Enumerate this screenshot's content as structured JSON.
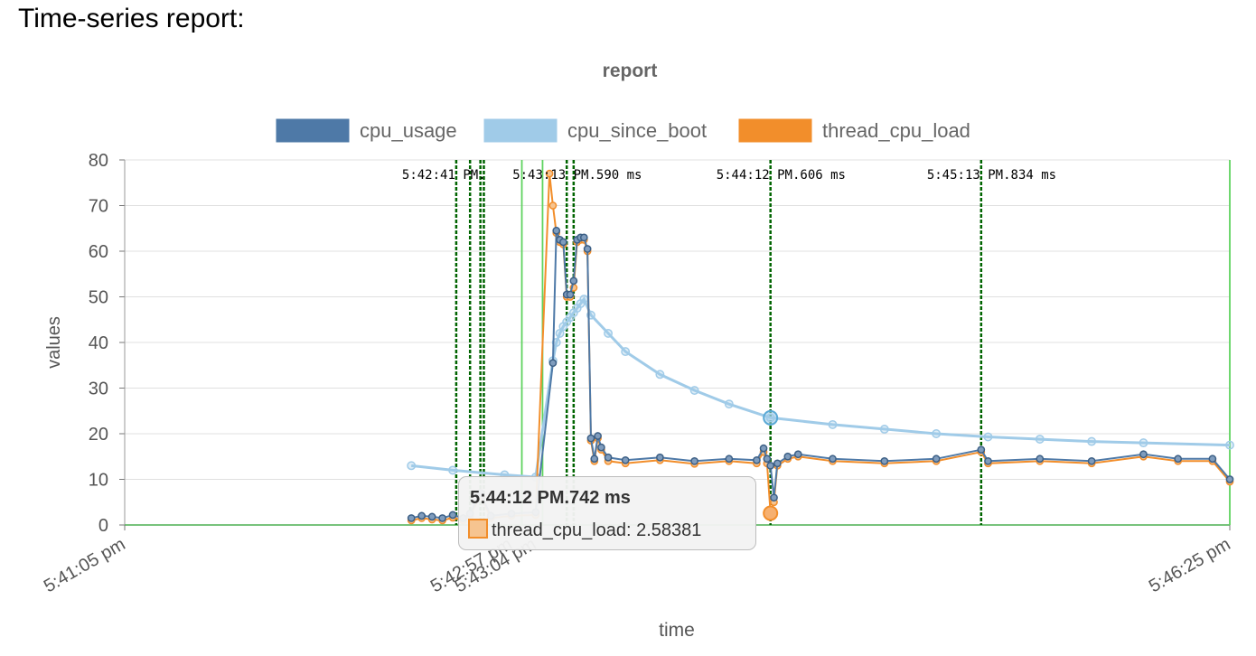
{
  "page": {
    "heading": "Time-series report:"
  },
  "colors": {
    "cpu_usage": "#4e79a7",
    "cpu_since_boot": "#a0cbe8",
    "thread_cpu_load": "#f28e2b",
    "marker_solid": "#5fd35f",
    "marker_dashed": "#006400",
    "zero_line": "#4caf50"
  },
  "chart_data": {
    "type": "line",
    "title": "report",
    "xlabel": "time",
    "ylabel": "values",
    "ylim": [
      0,
      80
    ],
    "yticks": [
      0,
      10,
      20,
      30,
      40,
      50,
      60,
      70,
      80
    ],
    "xlim": [
      "5:41:05 pm",
      "5:46:25 pm"
    ],
    "xticks": [
      {
        "t": "5:41:05 pm",
        "label": "5:41:05 pm"
      },
      {
        "t": "5:42:57 pm",
        "label": "5:42:57 pm"
      },
      {
        "t": "5:43:04 pm",
        "label": "5:43:04 pm"
      },
      {
        "t": "5:46:25 pm",
        "label": "5:46:25 pm"
      }
    ],
    "legend_position": "top",
    "grid": true,
    "series": [
      {
        "name": "cpu_usage",
        "points": [
          [
            "5:42:28 pm",
            1.5
          ],
          [
            "5:42:31 pm",
            2.0
          ],
          [
            "5:42:34 pm",
            1.8
          ],
          [
            "5:42:37 pm",
            1.5
          ],
          [
            "5:42:40 pm",
            2.2
          ],
          [
            "5:42:43 pm",
            1.5
          ],
          [
            "5:42:45 pm",
            2.5
          ],
          [
            "5:42:48 pm",
            7.0
          ],
          [
            "5:42:51 pm",
            2.0
          ],
          [
            "5:42:57 pm",
            2.5
          ],
          [
            "5:43:04 pm",
            2.8
          ],
          [
            "5:43:09 pm",
            35.5
          ],
          [
            "5:43:10 pm",
            64.5
          ],
          [
            "5:43:11 pm",
            62.5
          ],
          [
            "5:43:12 pm",
            62.0
          ],
          [
            "5:43:13 pm",
            50.5
          ],
          [
            "5:43:14 pm",
            50.5
          ],
          [
            "5:43:15 pm",
            53.5
          ],
          [
            "5:43:16 pm",
            62.5
          ],
          [
            "5:43:17 pm",
            63.0
          ],
          [
            "5:43:18 pm",
            63.0
          ],
          [
            "5:43:19 pm",
            60.5
          ],
          [
            "5:43:20 pm",
            19.0
          ],
          [
            "5:43:21 pm",
            14.5
          ],
          [
            "5:43:22 pm",
            19.5
          ],
          [
            "5:43:23 pm",
            17.0
          ],
          [
            "5:43:25 pm",
            14.8
          ],
          [
            "5:43:30 pm",
            14.2
          ],
          [
            "5:43:40 pm",
            14.8
          ],
          [
            "5:43:50 pm",
            14.0
          ],
          [
            "5:44:00 pm",
            14.5
          ],
          [
            "5:44:08 pm",
            14.2
          ],
          [
            "5:44:10 pm",
            16.8
          ],
          [
            "5:44:11 pm",
            14.5
          ],
          [
            "5:44:12 pm",
            13.0
          ],
          [
            "5:44:13 pm",
            6.0
          ],
          [
            "5:44:14 pm",
            13.5
          ],
          [
            "5:44:17 pm",
            15.0
          ],
          [
            "5:44:20 pm",
            15.5
          ],
          [
            "5:44:30 pm",
            14.5
          ],
          [
            "5:44:45 pm",
            14.0
          ],
          [
            "5:45:00 pm",
            14.5
          ],
          [
            "5:45:13 pm",
            16.5
          ],
          [
            "5:45:15 pm",
            14.0
          ],
          [
            "5:45:30 pm",
            14.5
          ],
          [
            "5:45:45 pm",
            14.0
          ],
          [
            "5:46:00 pm",
            15.5
          ],
          [
            "5:46:10 pm",
            14.5
          ],
          [
            "5:46:20 pm",
            14.5
          ],
          [
            "5:46:25 pm",
            10.0
          ]
        ]
      },
      {
        "name": "cpu_since_boot",
        "points": [
          [
            "5:42:28 pm",
            13.0
          ],
          [
            "5:42:40 pm",
            12.0
          ],
          [
            "5:42:55 pm",
            11.0
          ],
          [
            "5:43:04 pm",
            10.5
          ],
          [
            "5:43:09 pm",
            36.0
          ],
          [
            "5:43:10 pm",
            40.0
          ],
          [
            "5:43:11 pm",
            42.0
          ],
          [
            "5:43:12 pm",
            43.5
          ],
          [
            "5:43:13 pm",
            44.5
          ],
          [
            "5:43:14 pm",
            45.5
          ],
          [
            "5:43:15 pm",
            46.5
          ],
          [
            "5:43:16 pm",
            47.5
          ],
          [
            "5:43:17 pm",
            48.5
          ],
          [
            "5:43:18 pm",
            49.5
          ],
          [
            "5:43:20 pm",
            46.0
          ],
          [
            "5:43:25 pm",
            42.0
          ],
          [
            "5:43:30 pm",
            38.0
          ],
          [
            "5:43:40 pm",
            33.0
          ],
          [
            "5:43:50 pm",
            29.5
          ],
          [
            "5:44:00 pm",
            26.5
          ],
          [
            "5:44:12 pm",
            23.5
          ],
          [
            "5:44:30 pm",
            22.0
          ],
          [
            "5:44:45 pm",
            21.0
          ],
          [
            "5:45:00 pm",
            20.0
          ],
          [
            "5:45:15 pm",
            19.3
          ],
          [
            "5:45:30 pm",
            18.8
          ],
          [
            "5:45:45 pm",
            18.3
          ],
          [
            "5:46:00 pm",
            18.0
          ],
          [
            "5:46:25 pm",
            17.5
          ]
        ]
      },
      {
        "name": "thread_cpu_load",
        "points": [
          [
            "5:42:28 pm",
            1.0
          ],
          [
            "5:42:31 pm",
            1.5
          ],
          [
            "5:42:34 pm",
            1.2
          ],
          [
            "5:42:37 pm",
            1.0
          ],
          [
            "5:42:40 pm",
            1.6
          ],
          [
            "5:42:43 pm",
            1.0
          ],
          [
            "5:42:45 pm",
            2.0
          ],
          [
            "5:42:48 pm",
            6.5
          ],
          [
            "5:42:51 pm",
            1.5
          ],
          [
            "5:42:57 pm",
            2.0
          ],
          [
            "5:43:04 pm",
            2.2
          ],
          [
            "5:43:08 pm",
            77.0
          ],
          [
            "5:43:09 pm",
            70.0
          ],
          [
            "5:43:10 pm",
            64.0
          ],
          [
            "5:43:11 pm",
            62.0
          ],
          [
            "5:43:12 pm",
            61.5
          ],
          [
            "5:43:13 pm",
            50.0
          ],
          [
            "5:43:14 pm",
            50.0
          ],
          [
            "5:43:15 pm",
            52.0
          ],
          [
            "5:43:16 pm",
            62.0
          ],
          [
            "5:43:17 pm",
            62.5
          ],
          [
            "5:43:18 pm",
            62.5
          ],
          [
            "5:43:19 pm",
            60.0
          ],
          [
            "5:43:20 pm",
            18.5
          ],
          [
            "5:43:21 pm",
            14.0
          ],
          [
            "5:43:22 pm",
            19.0
          ],
          [
            "5:43:23 pm",
            16.5
          ],
          [
            "5:43:25 pm",
            14.0
          ],
          [
            "5:43:30 pm",
            13.5
          ],
          [
            "5:43:40 pm",
            14.2
          ],
          [
            "5:43:50 pm",
            13.4
          ],
          [
            "5:44:00 pm",
            14.0
          ],
          [
            "5:44:08 pm",
            13.5
          ],
          [
            "5:44:10 pm",
            16.0
          ],
          [
            "5:44:11 pm",
            13.5
          ],
          [
            "5:44:12 pm",
            2.58381
          ],
          [
            "5:44:13 pm",
            5.0
          ],
          [
            "5:44:14 pm",
            13.0
          ],
          [
            "5:44:17 pm",
            14.5
          ],
          [
            "5:44:20 pm",
            15.0
          ],
          [
            "5:44:30 pm",
            14.0
          ],
          [
            "5:44:45 pm",
            13.5
          ],
          [
            "5:45:00 pm",
            14.0
          ],
          [
            "5:45:13 pm",
            16.0
          ],
          [
            "5:45:15 pm",
            13.5
          ],
          [
            "5:45:30 pm",
            14.0
          ],
          [
            "5:45:45 pm",
            13.5
          ],
          [
            "5:46:00 pm",
            15.0
          ],
          [
            "5:46:10 pm",
            14.0
          ],
          [
            "5:46:20 pm",
            14.0
          ],
          [
            "5:46:25 pm",
            9.5
          ]
        ]
      }
    ],
    "vertical_markers": [
      {
        "t": "5:42:41 pm",
        "style": "dashed"
      },
      {
        "t": "5:42:45 pm",
        "style": "dashed"
      },
      {
        "t": "5:42:48 pm",
        "style": "dashed"
      },
      {
        "t": "5:42:49 pm",
        "style": "dashed"
      },
      {
        "t": "5:43:00 pm",
        "style": "solid"
      },
      {
        "t": "5:43:06 pm",
        "style": "solid"
      },
      {
        "t": "5:43:13 pm",
        "style": "dashed"
      },
      {
        "t": "5:43:15 pm",
        "style": "dashed"
      },
      {
        "t": "5:44:12 pm",
        "style": "dashed"
      },
      {
        "t": "5:45:13 pm",
        "style": "dashed"
      },
      {
        "t": "5:46:25 pm",
        "style": "solid"
      }
    ],
    "annotations": [
      {
        "t": "5:42:41 pm",
        "text": "5:42:41 PM."
      },
      {
        "t": "5:43:13 pm",
        "text": "5:43:13 PM.590 ms"
      },
      {
        "t": "5:44:12 pm",
        "text": "5:44:12 PM.606 ms"
      },
      {
        "t": "5:45:13 pm",
        "text": "5:45:13 PM.834 ms"
      }
    ],
    "highlighted_points": [
      {
        "series": "cpu_since_boot",
        "t": "5:44:12 pm",
        "value": 23.5
      },
      {
        "series": "thread_cpu_load",
        "t": "5:44:12 pm",
        "value": 2.58381
      }
    ],
    "tooltip": {
      "title": "5:44:12 PM.742 ms",
      "series": "thread_cpu_load",
      "label": "thread_cpu_load: 2.58381"
    }
  }
}
